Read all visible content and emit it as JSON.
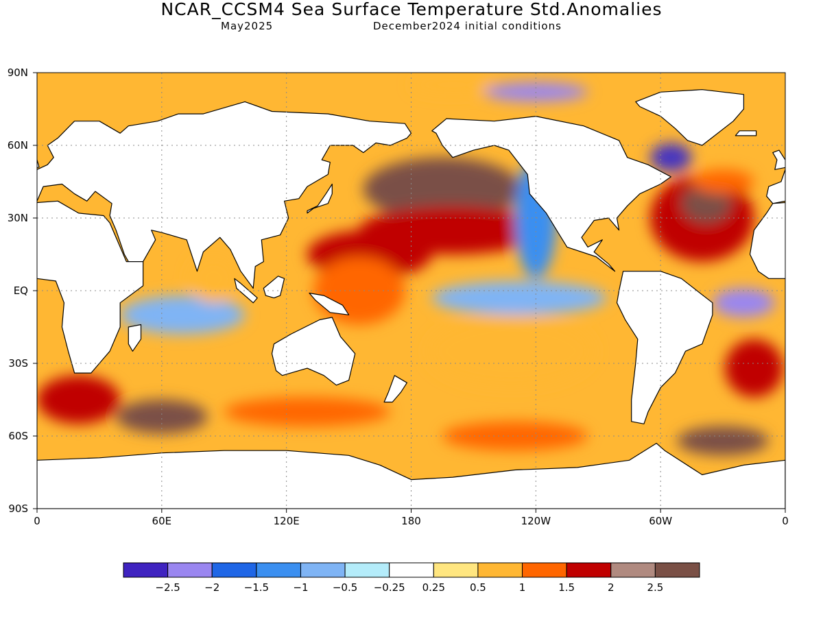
{
  "header": {
    "title": "NCAR_CCSM4 Sea Surface Temperature Std.Anomalies",
    "valid_month": "May2025",
    "init_conditions": "December2024 initial conditions"
  },
  "map": {
    "projection": "cylindrical equidistant",
    "lon_range": [
      0,
      360
    ],
    "lat_range": [
      -90,
      90
    ],
    "gridlines": "dotted",
    "x_ticks": [
      {
        "lon": 0,
        "label": "0"
      },
      {
        "lon": 60,
        "label": "60E"
      },
      {
        "lon": 120,
        "label": "120E"
      },
      {
        "lon": 180,
        "label": "180"
      },
      {
        "lon": 240,
        "label": "120W"
      },
      {
        "lon": 300,
        "label": "60W"
      },
      {
        "lon": 360,
        "label": "0"
      }
    ],
    "y_ticks": [
      {
        "lat": 90,
        "label": "90N"
      },
      {
        "lat": 60,
        "label": "60N"
      },
      {
        "lat": 30,
        "label": "30N"
      },
      {
        "lat": 0,
        "label": "EQ"
      },
      {
        "lat": -30,
        "label": "30S"
      },
      {
        "lat": -60,
        "label": "60S"
      },
      {
        "lat": -90,
        "label": "90S"
      }
    ],
    "anomaly_regions": [
      {
        "lon": 195,
        "lat": 42,
        "rx": 38,
        "ry": 13,
        "color": "#7a5046"
      },
      {
        "lon": 200,
        "lat": 25,
        "rx": 45,
        "ry": 10,
        "color": "#c00000"
      },
      {
        "lon": 160,
        "lat": 15,
        "rx": 30,
        "ry": 10,
        "color": "#c00000"
      },
      {
        "lon": 155,
        "lat": 0,
        "rx": 22,
        "ry": 14,
        "color": "#ff6600"
      },
      {
        "lon": 232,
        "lat": -3,
        "rx": 42,
        "ry": 7,
        "color": "#7fb4f5"
      },
      {
        "lon": 228,
        "lat": -25,
        "rx": 40,
        "ry": 15,
        "color": "#ffb733"
      },
      {
        "lon": 240,
        "lat": 30,
        "rx": 10,
        "ry": 25,
        "color": "#3b8ff0"
      },
      {
        "lon": 320,
        "lat": 30,
        "rx": 25,
        "ry": 18,
        "color": "#c00000"
      },
      {
        "lon": 322,
        "lat": 36,
        "rx": 12,
        "ry": 8,
        "color": "#7a5046"
      },
      {
        "lon": 305,
        "lat": 55,
        "rx": 10,
        "ry": 6,
        "color": "#4634c0"
      },
      {
        "lon": 340,
        "lat": -5,
        "rx": 15,
        "ry": 6,
        "color": "#9a86f0"
      },
      {
        "lon": 345,
        "lat": -32,
        "rx": 14,
        "ry": 12,
        "color": "#c00000"
      },
      {
        "lon": 70,
        "lat": -10,
        "rx": 30,
        "ry": 8,
        "color": "#7fb4f5"
      },
      {
        "lon": 85,
        "lat": 5,
        "rx": 12,
        "ry": 10,
        "color": "#ffb733"
      },
      {
        "lon": 60,
        "lat": -52,
        "rx": 22,
        "ry": 7,
        "color": "#7a5046"
      },
      {
        "lon": 130,
        "lat": -50,
        "rx": 40,
        "ry": 6,
        "color": "#ff6600"
      },
      {
        "lon": 20,
        "lat": -45,
        "rx": 20,
        "ry": 10,
        "color": "#c00000"
      },
      {
        "lon": 230,
        "lat": -60,
        "rx": 35,
        "ry": 6,
        "color": "#ff6600"
      },
      {
        "lon": 330,
        "lat": -62,
        "rx": 22,
        "ry": 6,
        "color": "#7a5046"
      },
      {
        "lon": 200,
        "lat": 85,
        "rx": 20,
        "ry": 4,
        "color": "#ffb733"
      },
      {
        "lon": 240,
        "lat": 82,
        "rx": 25,
        "ry": 4,
        "color": "#9a86f0"
      },
      {
        "lon": 330,
        "lat": 45,
        "rx": 15,
        "ry": 5,
        "color": "#ff6600"
      }
    ],
    "continents": [
      {
        "name": "north-america",
        "points": [
          [
            190,
            66
          ],
          [
            197,
            71
          ],
          [
            220,
            70
          ],
          [
            240,
            72
          ],
          [
            263,
            68
          ],
          [
            280,
            62
          ],
          [
            284,
            55
          ],
          [
            294,
            52
          ],
          [
            305,
            47
          ],
          [
            300,
            44
          ],
          [
            290,
            40
          ],
          [
            284,
            35
          ],
          [
            279,
            30
          ],
          [
            280,
            25
          ],
          [
            278,
            27
          ],
          [
            275,
            30
          ],
          [
            268,
            29
          ],
          [
            262,
            22
          ],
          [
            265,
            18
          ],
          [
            272,
            21
          ],
          [
            268,
            16
          ],
          [
            275,
            11
          ],
          [
            278,
            8
          ],
          [
            275,
            10
          ],
          [
            269,
            14
          ],
          [
            255,
            18
          ],
          [
            250,
            25
          ],
          [
            245,
            32
          ],
          [
            237,
            40
          ],
          [
            236,
            48
          ],
          [
            227,
            58
          ],
          [
            220,
            60
          ],
          [
            210,
            58
          ],
          [
            200,
            55
          ],
          [
            195,
            60
          ],
          [
            192,
            65
          ]
        ]
      },
      {
        "name": "south-america",
        "points": [
          [
            282,
            8
          ],
          [
            300,
            8
          ],
          [
            310,
            5
          ],
          [
            325,
            -5
          ],
          [
            325,
            -10
          ],
          [
            320,
            -22
          ],
          [
            312,
            -25
          ],
          [
            307,
            -34
          ],
          [
            300,
            -40
          ],
          [
            294,
            -50
          ],
          [
            292,
            -55
          ],
          [
            286,
            -54
          ],
          [
            286,
            -45
          ],
          [
            288,
            -30
          ],
          [
            289,
            -20
          ],
          [
            283,
            -12
          ],
          [
            279,
            -5
          ],
          [
            280,
            0
          ],
          [
            282,
            8
          ]
        ]
      },
      {
        "name": "eurasia",
        "points": [
          [
            0,
            50
          ],
          [
            -2,
            45
          ],
          [
            -8,
            43
          ],
          [
            -9,
            39
          ],
          [
            -6,
            36
          ],
          [
            0,
            37
          ],
          [
            3,
            43
          ],
          [
            12,
            44
          ],
          [
            18,
            40
          ],
          [
            24,
            37
          ],
          [
            28,
            41
          ],
          [
            36,
            36
          ],
          [
            35,
            31
          ],
          [
            38,
            25
          ],
          [
            42,
            15
          ],
          [
            44,
            12
          ],
          [
            51,
            12
          ],
          [
            57,
            21
          ],
          [
            55,
            25
          ],
          [
            60,
            24
          ],
          [
            72,
            21
          ],
          [
            77,
            8
          ],
          [
            80,
            16
          ],
          [
            88,
            22
          ],
          [
            93,
            17
          ],
          [
            98,
            8
          ],
          [
            104,
            1
          ],
          [
            105,
            10
          ],
          [
            109,
            12
          ],
          [
            108,
            21
          ],
          [
            117,
            23
          ],
          [
            121,
            30
          ],
          [
            119,
            37
          ],
          [
            126,
            38
          ],
          [
            130,
            43
          ],
          [
            140,
            48
          ],
          [
            141,
            53
          ],
          [
            137,
            54
          ],
          [
            141,
            60
          ],
          [
            152,
            60
          ],
          [
            157,
            57
          ],
          [
            163,
            61
          ],
          [
            170,
            60
          ],
          [
            178,
            63
          ],
          [
            180,
            65
          ],
          [
            177,
            69
          ],
          [
            160,
            70
          ],
          [
            140,
            73
          ],
          [
            113,
            74
          ],
          [
            100,
            78
          ],
          [
            80,
            73
          ],
          [
            68,
            73
          ],
          [
            58,
            70
          ],
          [
            44,
            68
          ],
          [
            40,
            65
          ],
          [
            30,
            70
          ],
          [
            18,
            70
          ],
          [
            10,
            63
          ],
          [
            5,
            60
          ],
          [
            8,
            55
          ],
          [
            5,
            52
          ]
        ]
      },
      {
        "name": "africa",
        "points": [
          [
            -17,
            15
          ],
          [
            -15,
            25
          ],
          [
            -9,
            32
          ],
          [
            -6,
            36
          ],
          [
            10,
            37
          ],
          [
            20,
            32
          ],
          [
            32,
            31
          ],
          [
            35,
            28
          ],
          [
            43,
            12
          ],
          [
            51,
            12
          ],
          [
            51,
            2
          ],
          [
            40,
            -5
          ],
          [
            40,
            -15
          ],
          [
            35,
            -25
          ],
          [
            32,
            -28
          ],
          [
            26,
            -34
          ],
          [
            18,
            -34
          ],
          [
            15,
            -25
          ],
          [
            12,
            -15
          ],
          [
            13,
            -5
          ],
          [
            9,
            4
          ],
          [
            0,
            5
          ],
          [
            -8,
            5
          ],
          [
            -13,
            8
          ],
          [
            -17,
            15
          ]
        ]
      },
      {
        "name": "australia",
        "points": [
          [
            114,
            -22
          ],
          [
            122,
            -18
          ],
          [
            129,
            -15
          ],
          [
            136,
            -12
          ],
          [
            142,
            -11
          ],
          [
            146,
            -19
          ],
          [
            153,
            -26
          ],
          [
            150,
            -37
          ],
          [
            144,
            -39
          ],
          [
            138,
            -35
          ],
          [
            130,
            -32
          ],
          [
            118,
            -35
          ],
          [
            115,
            -33
          ],
          [
            113,
            -26
          ]
        ]
      },
      {
        "name": "antarctica",
        "points": [
          [
            0,
            -70
          ],
          [
            30,
            -69
          ],
          [
            60,
            -67
          ],
          [
            90,
            -66
          ],
          [
            120,
            -66
          ],
          [
            150,
            -68
          ],
          [
            165,
            -72
          ],
          [
            180,
            -78
          ],
          [
            200,
            -77
          ],
          [
            230,
            -74
          ],
          [
            260,
            -73
          ],
          [
            285,
            -70
          ],
          [
            298,
            -63
          ],
          [
            302,
            -66
          ],
          [
            320,
            -76
          ],
          [
            340,
            -72
          ],
          [
            360,
            -70
          ],
          [
            360,
            -90
          ],
          [
            0,
            -90
          ]
        ]
      },
      {
        "name": "greenland",
        "points": [
          [
            288,
            78
          ],
          [
            300,
            82
          ],
          [
            320,
            83
          ],
          [
            340,
            81
          ],
          [
            340,
            75
          ],
          [
            335,
            70
          ],
          [
            320,
            60
          ],
          [
            313,
            62
          ],
          [
            307,
            67
          ],
          [
            300,
            72
          ],
          [
            290,
            76
          ]
        ]
      },
      {
        "name": "madagascar",
        "points": [
          [
            44,
            -15
          ],
          [
            50,
            -14
          ],
          [
            50,
            -20
          ],
          [
            46,
            -25
          ],
          [
            44,
            -22
          ]
        ]
      },
      {
        "name": "new-zealand",
        "points": [
          [
            172,
            -35
          ],
          [
            178,
            -38
          ],
          [
            175,
            -42
          ],
          [
            171,
            -46
          ],
          [
            167,
            -46
          ],
          [
            169,
            -42
          ]
        ]
      },
      {
        "name": "japan",
        "points": [
          [
            130,
            32
          ],
          [
            133,
            34
          ],
          [
            140,
            36
          ],
          [
            142,
            40
          ],
          [
            142,
            44
          ],
          [
            139,
            40
          ],
          [
            135,
            35
          ],
          [
            130,
            33
          ]
        ]
      },
      {
        "name": "uk",
        "points": [
          [
            -5,
            50
          ],
          [
            1,
            51
          ],
          [
            0,
            54
          ],
          [
            -3,
            58
          ],
          [
            -6,
            57
          ],
          [
            -4,
            54
          ]
        ]
      },
      {
        "name": "borneo",
        "points": [
          [
            109,
            1
          ],
          [
            116,
            6
          ],
          [
            119,
            5
          ],
          [
            117,
            -2
          ],
          [
            114,
            -3
          ],
          [
            110,
            -2
          ]
        ]
      },
      {
        "name": "sumatra",
        "points": [
          [
            95,
            5
          ],
          [
            98,
            3
          ],
          [
            106,
            -3
          ],
          [
            104,
            -5
          ],
          [
            96,
            1
          ]
        ]
      },
      {
        "name": "new-guinea",
        "points": [
          [
            131,
            -1
          ],
          [
            138,
            -2
          ],
          [
            147,
            -6
          ],
          [
            150,
            -10
          ],
          [
            141,
            -9
          ],
          [
            134,
            -4
          ]
        ]
      },
      {
        "name": "iceland",
        "points": [
          [
            -24,
            64
          ],
          [
            -14,
            64
          ],
          [
            -14,
            66
          ],
          [
            -22,
            66
          ]
        ]
      }
    ],
    "continent_fill": "#ffffff"
  },
  "colorbar": {
    "colors": [
      "#3f23c0",
      "#9a86f0",
      "#1f66e6",
      "#3b8ff0",
      "#7fb4f5",
      "#b4ecfa",
      "#ffffff",
      "#ffe680",
      "#ffb733",
      "#ff6600",
      "#c00000",
      "#b08a80",
      "#7a5046"
    ],
    "labels": [
      "−2.5",
      "−2",
      "−1.5",
      "−1",
      "−0.5",
      "−0.25",
      "0.25",
      "0.5",
      "1",
      "1.5",
      "2",
      "2.5"
    ]
  }
}
